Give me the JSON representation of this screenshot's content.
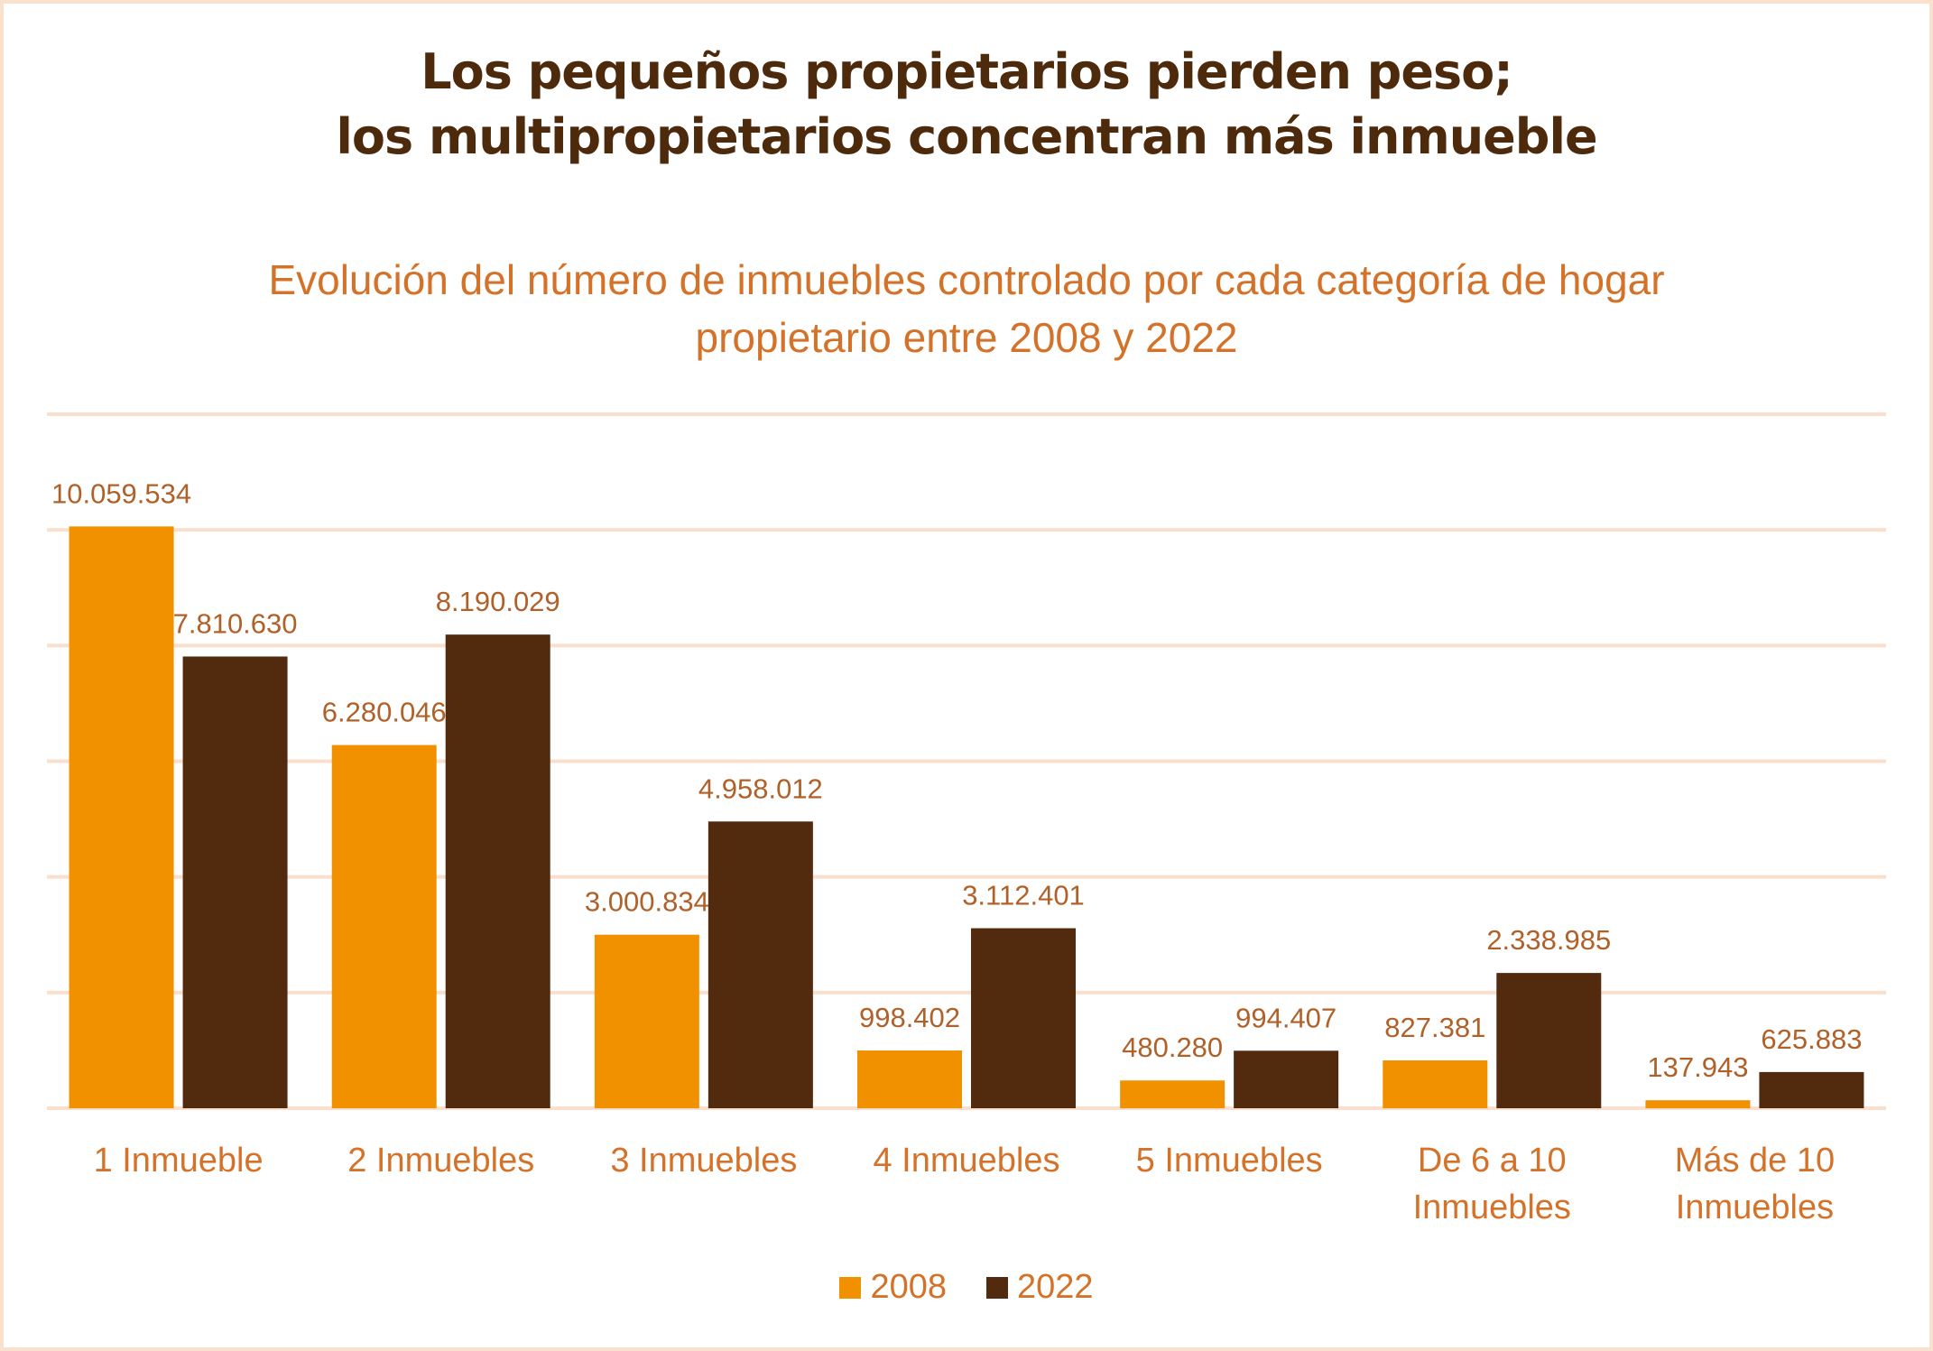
{
  "title": {
    "line1": "Los pequeños propietarios pierden peso;",
    "line2": "los multipropietarios concentran más inmueble"
  },
  "subtitle": {
    "line1": "Evolución del número de inmuebles controlado por cada categoría de hogar",
    "line2": "propietario entre 2008 y 2022"
  },
  "colors": {
    "series_2008": "#F29100",
    "series_2022": "#522B0E",
    "title": "#4E2A0C",
    "subtitle": "#D4722A",
    "data_label": "#B0612A",
    "gridline": "#FAE0CC"
  },
  "chart_data": {
    "type": "bar",
    "title": "Los pequeños propietarios pierden peso; los multipropietarios concentran más inmueble",
    "subtitle": "Evolución del número de inmuebles controlado por cada categoría de hogar propietario entre 2008 y 2022",
    "categories": [
      [
        "1 Inmueble"
      ],
      [
        "2 Inmuebles"
      ],
      [
        "3 Inmuebles"
      ],
      [
        "4 Inmuebles"
      ],
      [
        "5 Inmuebles"
      ],
      [
        "De 6 a 10",
        "Inmuebles"
      ],
      [
        "Más de 10",
        "Inmuebles"
      ]
    ],
    "series": [
      {
        "name": "2008",
        "values": [
          10059534,
          6280046,
          3000834,
          998402,
          480280,
          827381,
          137943
        ],
        "labels": [
          "10.059.534",
          "6.280.046",
          "3.000.834",
          "998.402",
          "480.280",
          "827.381",
          "137.943"
        ]
      },
      {
        "name": "2022",
        "values": [
          7810630,
          8190029,
          4958012,
          3112401,
          994407,
          2338985,
          625883
        ],
        "labels": [
          "7.810.630",
          "8.190.029",
          "4.958.012",
          "3.112.401",
          "994.407",
          "2.338.985",
          "625.883"
        ]
      }
    ],
    "xlabel": "",
    "ylabel": "",
    "ylim": [
      0,
      12000000
    ],
    "gridline_step": 2000000,
    "grid": true,
    "y_tick_labels_visible": false,
    "legend": {
      "position": "bottom-center",
      "entries": [
        "2008",
        "2022"
      ]
    }
  }
}
